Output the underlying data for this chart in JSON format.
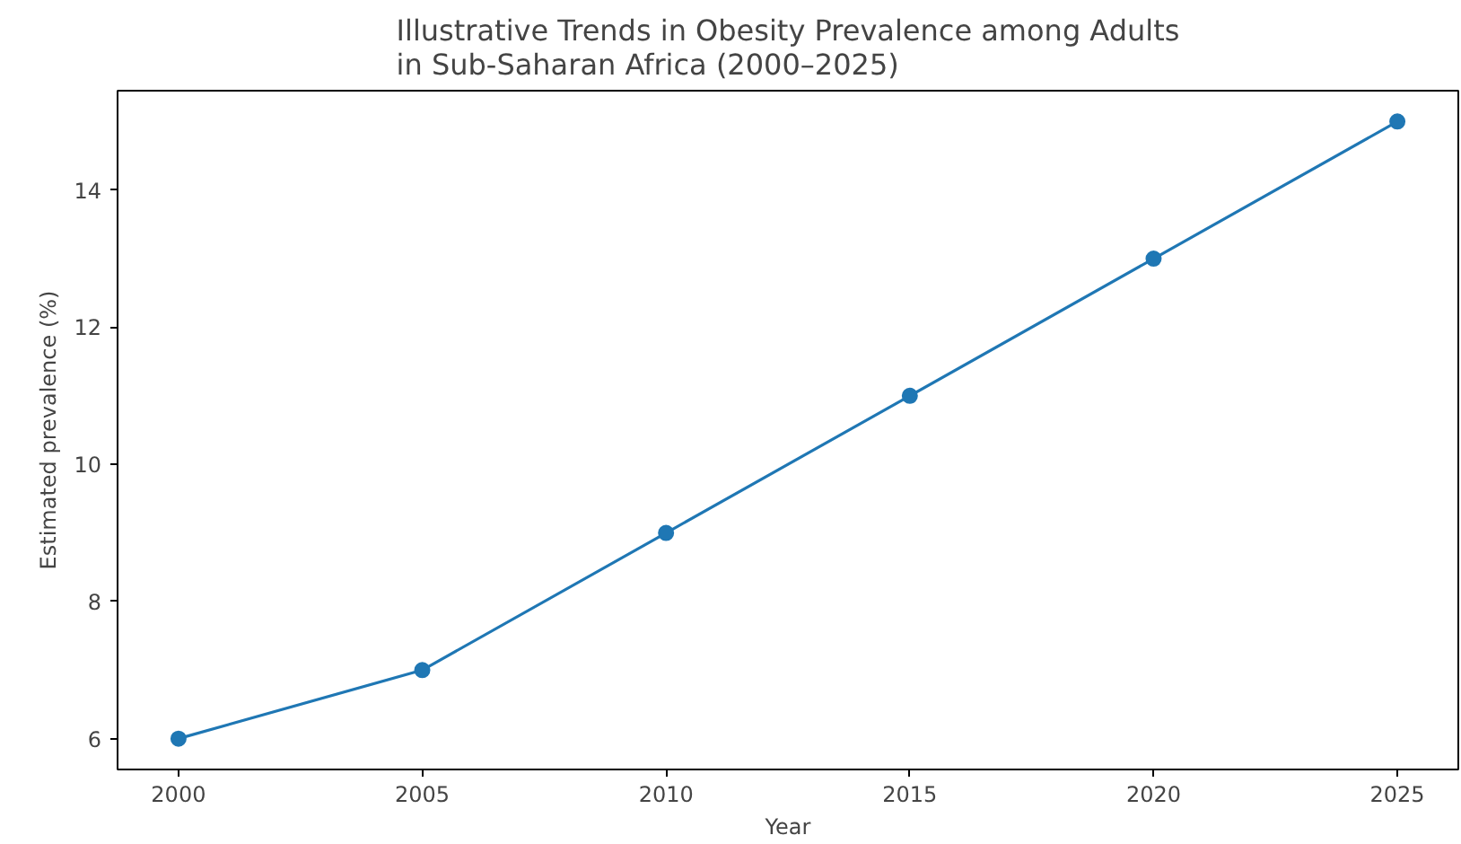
{
  "chart_data": {
    "type": "line",
    "title": "Illustrative Trends in Obesity Prevalence among Adults\nin Sub-Saharan Africa (2000–2025)",
    "xlabel": "Year",
    "ylabel": "Estimated prevalence (%)",
    "x": [
      2000,
      2005,
      2010,
      2015,
      2020,
      2025
    ],
    "series": [
      {
        "color": "#1f77b4",
        "values": [
          6,
          7,
          9,
          11,
          13,
          15
        ]
      }
    ],
    "xlim": [
      1998.75,
      2026.25
    ],
    "ylim": [
      5.55,
      15.45
    ],
    "xticks": [
      2000,
      2005,
      2010,
      2015,
      2020,
      2025
    ],
    "yticks": [
      6,
      8,
      10,
      12,
      14
    ],
    "marker": "circle",
    "line_style": "solid",
    "grid": false
  }
}
